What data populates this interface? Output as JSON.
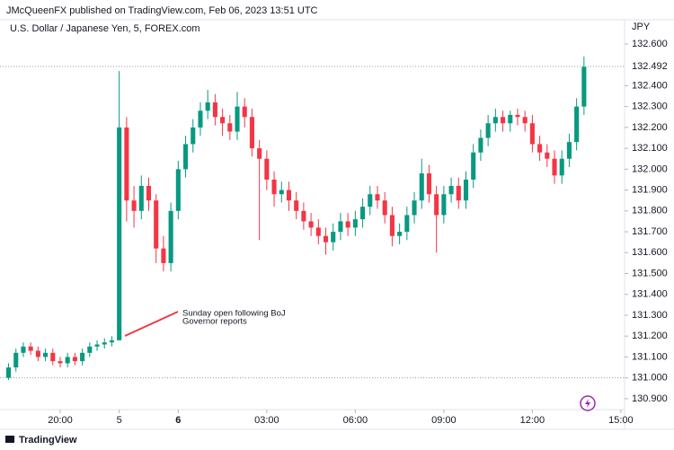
{
  "header": "JMcQueenFX published on TradingView.com, Feb 06, 2023 13:51 UTC",
  "footer": "TradingView",
  "chart_data": {
    "type": "candlestick",
    "title": "U.S. Dollar / Japanese Yen, 5, FOREX.com",
    "y_axis_label": "JPY",
    "up_color": "#089981",
    "down_color": "#f23645",
    "xlim": [
      -1.16,
      83.5
    ],
    "ylim": [
      130.848,
      132.716
    ],
    "xticks": [
      {
        "value": 7,
        "label": "20:00"
      },
      {
        "value": 15,
        "label": "5"
      },
      {
        "value": 23,
        "label": "6"
      },
      {
        "value": 35,
        "label": "03:00"
      },
      {
        "value": 47,
        "label": "06:00"
      },
      {
        "value": 59,
        "label": "09:00"
      },
      {
        "value": 71,
        "label": "12:00"
      },
      {
        "value": 83,
        "label": "15:00"
      }
    ],
    "yticks": [
      {
        "value": 130.9,
        "label": "130.900"
      },
      {
        "value": 131,
        "label": "131.000"
      },
      {
        "value": 131.1,
        "label": "131.100"
      },
      {
        "value": 131.2,
        "label": "131.200"
      },
      {
        "value": 131.3,
        "label": "131.300"
      },
      {
        "value": 131.4,
        "label": "131.400"
      },
      {
        "value": 131.5,
        "label": "131.500"
      },
      {
        "value": 131.6,
        "label": "131.600"
      },
      {
        "value": 131.7,
        "label": "131.700"
      },
      {
        "value": 131.8,
        "label": "131.800"
      },
      {
        "value": 131.9,
        "label": "131.900"
      },
      {
        "value": 132,
        "label": "132.000"
      },
      {
        "value": 132.1,
        "label": "132.100"
      },
      {
        "value": 132.2,
        "label": "132.200"
      },
      {
        "value": 132.3,
        "label": "132.300"
      },
      {
        "value": 132.4,
        "label": "132.400"
      },
      {
        "value": 132.6,
        "label": "132.600"
      }
    ],
    "last_price": 132.492,
    "level_line": 131.0,
    "annotation": [
      "Sunday open following BoJ",
      "Governor reports"
    ],
    "annotation_color": "#f23645",
    "open": [
      131.0,
      131.05,
      131.12,
      131.15,
      131.13,
      131.1,
      131.12,
      131.08,
      131.07,
      131.1,
      131.08,
      131.12,
      131.15,
      131.16,
      131.17,
      131.18,
      132.2,
      131.85,
      131.8,
      131.92,
      131.85,
      131.62,
      131.55,
      131.8,
      132.0,
      132.12,
      132.2,
      132.28,
      132.32,
      132.25,
      132.22,
      132.18,
      132.3,
      132.25,
      132.1,
      132.05,
      131.95,
      131.88,
      131.9,
      131.85,
      131.8,
      131.75,
      131.72,
      131.68,
      131.65,
      131.7,
      131.75,
      131.72,
      131.76,
      131.82,
      131.88,
      131.85,
      131.78,
      131.68,
      131.7,
      131.78,
      131.85,
      131.98,
      131.88,
      131.78,
      131.88,
      131.92,
      131.85,
      131.95,
      132.08,
      132.15,
      132.22,
      132.25,
      132.22,
      132.26,
      132.25,
      132.22,
      132.12,
      132.08,
      132.05,
      131.97,
      132.05,
      132.13,
      132.3
    ],
    "high": [
      131.07,
      131.14,
      131.17,
      131.17,
      131.15,
      131.14,
      131.14,
      131.1,
      131.12,
      131.12,
      131.14,
      131.17,
      131.18,
      131.19,
      131.2,
      132.47,
      132.25,
      131.92,
      131.97,
      131.96,
      131.88,
      131.68,
      131.84,
      132.04,
      132.16,
      132.24,
      132.32,
      132.38,
      132.36,
      132.29,
      132.26,
      132.37,
      132.34,
      132.29,
      132.14,
      132.09,
      131.99,
      131.94,
      131.94,
      131.89,
      131.84,
      131.79,
      131.76,
      131.72,
      131.74,
      131.79,
      131.79,
      131.8,
      131.86,
      131.92,
      131.92,
      131.89,
      131.82,
      131.74,
      131.82,
      131.89,
      132.05,
      132.02,
      131.92,
      131.92,
      131.96,
      131.96,
      131.99,
      132.12,
      132.19,
      132.26,
      132.29,
      132.28,
      132.28,
      132.29,
      132.28,
      132.26,
      132.16,
      132.12,
      132.09,
      132.09,
      132.17,
      132.34,
      132.54
    ],
    "low": [
      130.99,
      131.03,
      131.1,
      131.11,
      131.08,
      131.08,
      131.06,
      131.05,
      131.05,
      131.06,
      131.06,
      131.1,
      131.13,
      131.14,
      131.15,
      131.18,
      131.75,
      131.72,
      131.76,
      131.8,
      131.55,
      131.51,
      131.51,
      131.76,
      131.96,
      132.08,
      132.16,
      132.24,
      132.21,
      132.16,
      132.14,
      132.14,
      132.2,
      132.06,
      131.66,
      131.9,
      131.82,
      131.84,
      131.8,
      131.76,
      131.71,
      131.68,
      131.64,
      131.59,
      131.61,
      131.66,
      131.68,
      131.68,
      131.72,
      131.78,
      131.81,
      131.74,
      131.63,
      131.64,
      131.66,
      131.74,
      131.81,
      131.84,
      131.6,
      131.74,
      131.84,
      131.81,
      131.81,
      131.91,
      132.04,
      132.11,
      132.18,
      132.18,
      132.18,
      132.21,
      132.18,
      132.08,
      132.04,
      132.01,
      131.93,
      131.93,
      132.01,
      132.09,
      132.26
    ],
    "close": [
      131.05,
      131.12,
      131.15,
      131.13,
      131.1,
      131.12,
      131.08,
      131.07,
      131.1,
      131.08,
      131.12,
      131.15,
      131.16,
      131.17,
      131.18,
      132.2,
      131.85,
      131.8,
      131.92,
      131.85,
      131.62,
      131.55,
      131.8,
      132.0,
      132.12,
      132.2,
      132.28,
      132.32,
      132.25,
      132.22,
      132.18,
      132.3,
      132.25,
      132.1,
      132.05,
      131.95,
      131.88,
      131.9,
      131.85,
      131.8,
      131.75,
      131.72,
      131.68,
      131.65,
      131.7,
      131.75,
      131.72,
      131.76,
      131.82,
      131.88,
      131.85,
      131.78,
      131.68,
      131.7,
      131.78,
      131.85,
      131.98,
      131.88,
      131.78,
      131.88,
      131.92,
      131.85,
      131.95,
      132.08,
      132.15,
      132.22,
      132.25,
      132.22,
      132.26,
      132.25,
      132.22,
      132.12,
      132.08,
      132.05,
      131.97,
      132.05,
      132.13,
      132.3,
      132.49
    ]
  }
}
